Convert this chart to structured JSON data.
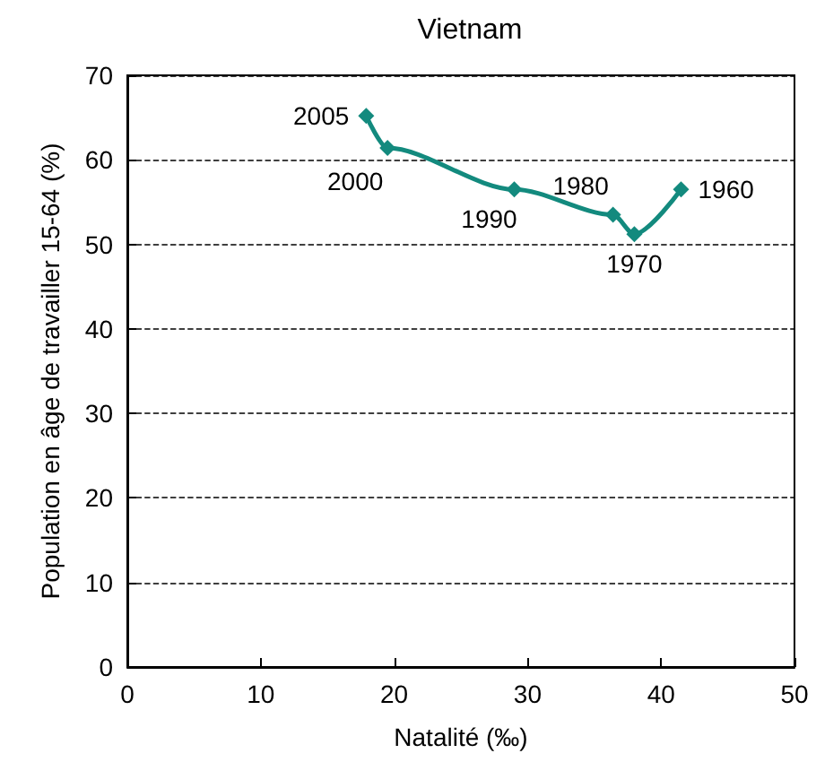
{
  "chart_data": {
    "type": "line",
    "title": "Vietnam",
    "xlabel": "Natalité (‰)",
    "ylabel": "Population en âge de travailler 15-64 (%)",
    "x": [
      41.5,
      38.0,
      36.4,
      29.0,
      19.5,
      17.9
    ],
    "series": [
      {
        "color": "#138a7e",
        "values": [
          56.5,
          51.2,
          53.5,
          56.5,
          61.4,
          65.2
        ]
      }
    ],
    "annotations": [
      {
        "text": "1960",
        "x": 41.5,
        "y": 56.5
      },
      {
        "text": "1970",
        "x": 38.0,
        "y": 51.2
      },
      {
        "text": "1980",
        "x": 36.4,
        "y": 53.5
      },
      {
        "text": "1990",
        "x": 29.0,
        "y": 56.5
      },
      {
        "text": "2000",
        "x": 19.5,
        "y": 61.4
      },
      {
        "text": "2005",
        "x": 17.9,
        "y": 65.2
      }
    ],
    "xlim": [
      0,
      50
    ],
    "xticks": [
      0,
      10,
      20,
      30,
      40,
      50
    ],
    "ylim": [
      0,
      70
    ],
    "yticks": [
      0,
      10,
      20,
      30,
      40,
      50,
      60,
      70
    ],
    "grid": "y",
    "marker": "diamond",
    "line_style": "solid"
  }
}
